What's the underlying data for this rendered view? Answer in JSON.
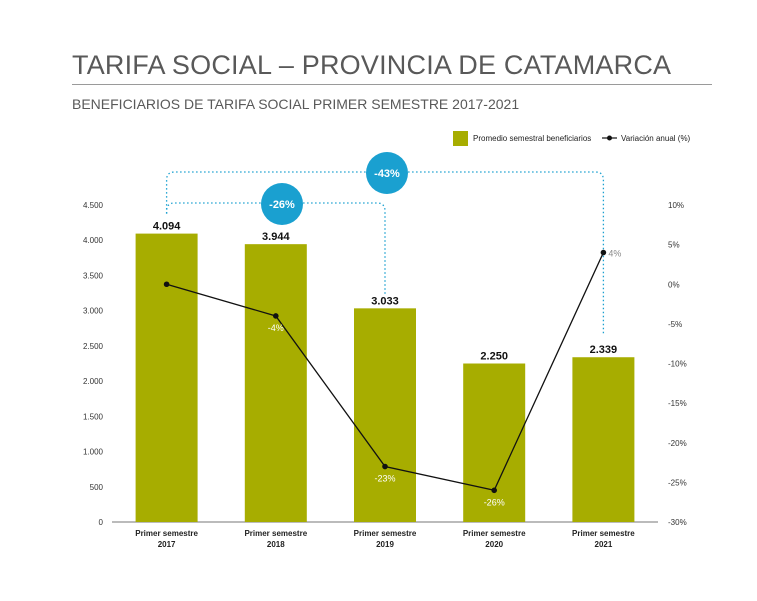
{
  "title": "TARIFA SOCIAL – PROVINCIA DE CATAMARCA",
  "subtitle": "BENEFICIARIOS DE TARIFA SOCIAL PRIMER SEMESTRE 2017-2021",
  "colors": {
    "bar": "#a7ad00",
    "line": "#111111",
    "accent": "#1aa0d0"
  },
  "chart_data": {
    "type": "bar",
    "categories": [
      [
        "Primer semestre",
        "2017"
      ],
      [
        "Primer semestre",
        "2018"
      ],
      [
        "Primer semestre",
        "2019"
      ],
      [
        "Primer semestre",
        "2020"
      ],
      [
        "Primer semestre",
        "2021"
      ]
    ],
    "series": [
      {
        "name": "Promedio semestral beneficiarios",
        "type": "bar",
        "axis": "left",
        "values": [
          4094,
          3944,
          3033,
          2250,
          2339
        ],
        "labels": [
          "4.094",
          "3.944",
          "3.033",
          "2.250",
          "2.339"
        ]
      },
      {
        "name": "Variación anual (%)",
        "type": "line",
        "axis": "right",
        "values": [
          0,
          -4,
          -23,
          -26,
          4
        ],
        "labels": [
          "",
          "-4%",
          "-23%",
          "-26%",
          "4%"
        ]
      }
    ],
    "y_left": {
      "min": 0,
      "max": 4500,
      "ticks": [
        0,
        500,
        1000,
        1500,
        2000,
        2500,
        3000,
        3500,
        4000,
        4500
      ],
      "tick_labels": [
        "0",
        "500",
        "1.000",
        "1.500",
        "2.000",
        "2.500",
        "3.000",
        "3.500",
        "4.000",
        "4.500"
      ]
    },
    "y_right": {
      "min": -30,
      "max": 10,
      "ticks": [
        10,
        5,
        0,
        -5,
        -10,
        -15,
        -20,
        -25,
        -30
      ],
      "tick_labels": [
        "10%",
        "5%",
        "0%",
        "-5%",
        "-10%",
        "-15%",
        "-20%",
        "-25%",
        "-30%"
      ]
    },
    "annotations": [
      {
        "from": 0,
        "to": 2,
        "label": "-26%"
      },
      {
        "from": 0,
        "to": 4,
        "label": "-43%"
      }
    ],
    "legend": "top-right",
    "grid": false
  }
}
